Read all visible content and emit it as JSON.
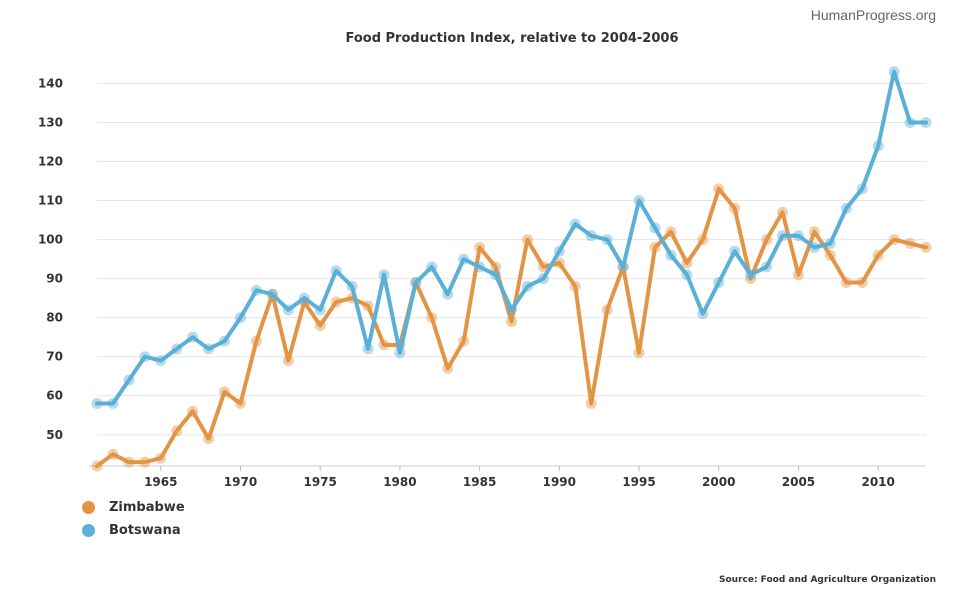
{
  "watermark": "HumanProgress.org",
  "source": "Source: Food and Agriculture Organization",
  "chart_data": {
    "type": "line",
    "title": "Food Production Index, relative to 2004-2006",
    "xlabel": "",
    "ylabel": "",
    "x": [
      1961,
      1962,
      1963,
      1964,
      1965,
      1966,
      1967,
      1968,
      1969,
      1970,
      1971,
      1972,
      1973,
      1974,
      1975,
      1976,
      1977,
      1978,
      1979,
      1980,
      1981,
      1982,
      1983,
      1984,
      1985,
      1986,
      1987,
      1988,
      1989,
      1990,
      1991,
      1992,
      1993,
      1994,
      1995,
      1996,
      1997,
      1998,
      1999,
      2000,
      2001,
      2002,
      2003,
      2004,
      2005,
      2006,
      2007,
      2008,
      2009,
      2010,
      2011,
      2012,
      2013
    ],
    "xlim": [
      1961,
      2013
    ],
    "ylim": [
      42,
      146
    ],
    "xticks": [
      1965,
      1970,
      1975,
      1980,
      1985,
      1990,
      1995,
      2000,
      2005,
      2010
    ],
    "yticks": [
      50,
      60,
      70,
      80,
      90,
      100,
      110,
      120,
      130,
      140
    ],
    "grid": true,
    "legend_position": "bottom-left",
    "series": [
      {
        "name": "Zimbabwe",
        "color": "#e39545",
        "values": [
          42,
          45,
          43,
          43,
          44,
          51,
          56,
          49,
          61,
          58,
          74,
          86,
          69,
          84,
          78,
          84,
          85,
          83,
          73,
          73,
          89,
          80,
          67,
          74,
          98,
          93,
          79,
          100,
          93,
          94,
          88,
          58,
          82,
          93,
          71,
          98,
          102,
          94,
          100,
          113,
          108,
          90,
          100,
          107,
          91,
          102,
          96,
          89,
          89,
          96,
          100,
          99,
          98
        ]
      },
      {
        "name": "Botswana",
        "color": "#5ab0d8",
        "values": [
          58,
          58,
          64,
          70,
          69,
          72,
          75,
          72,
          74,
          80,
          87,
          86,
          82,
          85,
          82,
          92,
          88,
          72,
          91,
          71,
          89,
          93,
          86,
          95,
          93,
          91,
          82,
          88,
          90,
          97,
          104,
          101,
          100,
          93,
          110,
          103,
          96,
          91,
          81,
          89,
          97,
          91,
          93,
          101,
          101,
          98,
          99,
          108,
          113,
          124,
          143,
          130,
          130
        ]
      }
    ]
  }
}
